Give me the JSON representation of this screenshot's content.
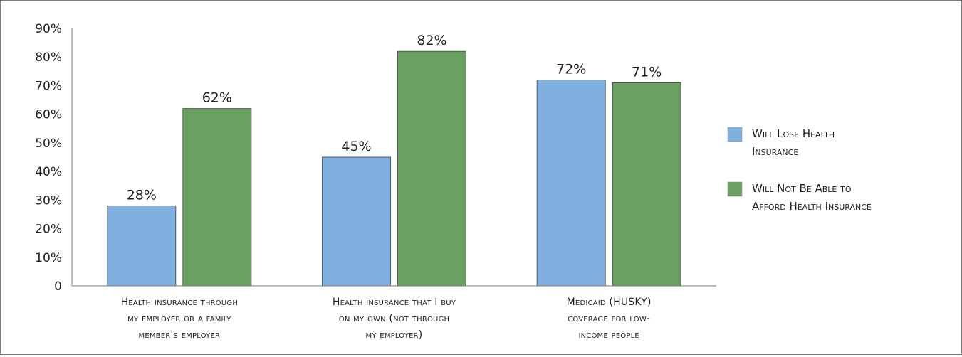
{
  "chart_data": {
    "type": "bar",
    "title": "",
    "xlabel": "",
    "ylabel": "",
    "ylim": [
      0,
      90
    ],
    "yticks": [
      0,
      10,
      20,
      30,
      40,
      50,
      60,
      70,
      80,
      90
    ],
    "ytick_labels": [
      "0",
      "10%",
      "20%",
      "30%",
      "40%",
      "50%",
      "60%",
      "70%",
      "80%",
      "90%"
    ],
    "grid": false,
    "legend_position": "right",
    "categories": [
      [
        "Health insurance through",
        "my employer or a family",
        "member's employer"
      ],
      [
        "Health insurance that I buy",
        "on my own (not through",
        "my employer)"
      ],
      [
        "Medicaid (HUSKY)",
        "coverage for low-",
        "income people"
      ]
    ],
    "series": [
      {
        "name": [
          "Will Lose Health",
          "Insurance"
        ],
        "color": "#7fb0df",
        "values": [
          28,
          45,
          72
        ],
        "labels": [
          "28%",
          "45%",
          "72%"
        ]
      },
      {
        "name": [
          "Will Not Be Able to",
          "Afford Health Insurance"
        ],
        "color": "#6aa062",
        "values": [
          62,
          82,
          71
        ],
        "labels": [
          "62%",
          "82%",
          "71%"
        ]
      }
    ]
  }
}
